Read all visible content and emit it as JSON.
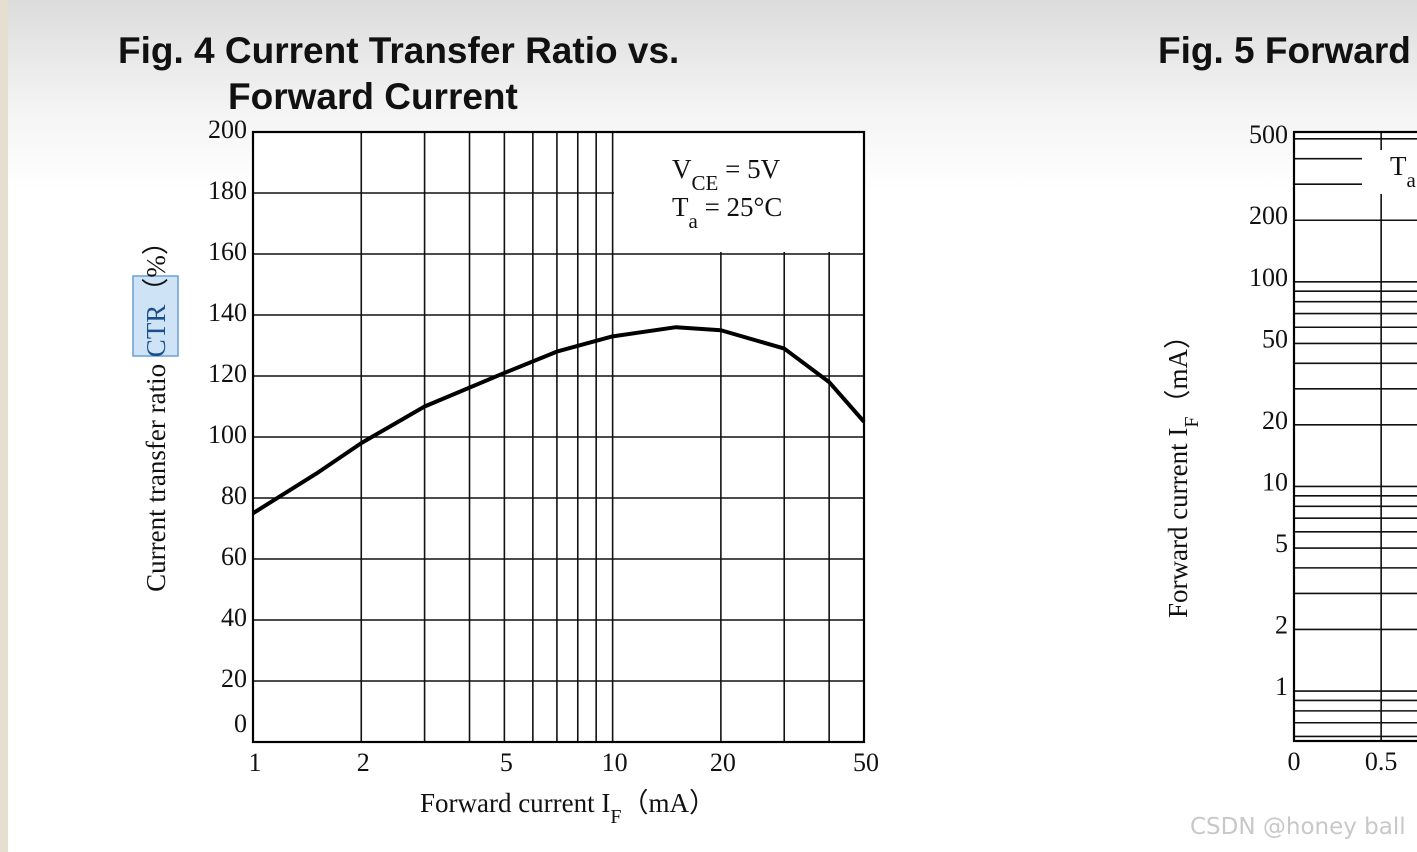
{
  "chart_data": [
    {
      "type": "line",
      "title": [
        "Fig. 4 Current Transfer Ratio vs.",
        "Forward Current"
      ],
      "x_label": {
        "text": "Forward current I",
        "sub": "F",
        "unit": "（mA）"
      },
      "y_label": {
        "text": "Current transfer ratio ",
        "highlight": "CTR",
        "unit": "（%）"
      },
      "annotations": [
        {
          "text": "V",
          "sub": "CE",
          "rest": " = 5V"
        },
        {
          "text": "T",
          "sub": "a",
          "rest": " = 25°C"
        }
      ],
      "x_scale": "log",
      "xlim": [
        1,
        50
      ],
      "xticks": [
        1,
        2,
        5,
        10,
        20,
        50
      ],
      "x_minor_grid": [
        3,
        4,
        6,
        7,
        8,
        9,
        30,
        40
      ],
      "ylim": [
        0,
        200
      ],
      "yticks": [
        0,
        20,
        40,
        60,
        80,
        100,
        120,
        140,
        160,
        180,
        200
      ],
      "grid": true,
      "series": [
        {
          "color": "#000000",
          "x": [
            1,
            1.5,
            2,
            3,
            5,
            7,
            10,
            15,
            20,
            30,
            40,
            50
          ],
          "values": [
            75,
            88,
            98,
            110,
            121,
            128,
            133,
            136,
            135,
            129,
            118,
            105
          ]
        }
      ]
    },
    {
      "type": "line",
      "title": [
        "Fig. 5 Forward"
      ],
      "y_label": {
        "text": "Forward current I",
        "sub": "F",
        "unit": "（mA）"
      },
      "annotations": [
        {
          "text": "T",
          "sub": "a"
        }
      ],
      "y_scale": "log",
      "ylim": [
        0.57,
        540
      ],
      "yticks": [
        1,
        2,
        5,
        10,
        20,
        50,
        100,
        200,
        500
      ],
      "y_minor_grid": [
        0.6,
        0.7,
        0.8,
        0.9,
        3,
        4,
        6,
        7,
        8,
        9,
        30,
        40,
        60,
        70,
        80,
        90,
        300,
        400
      ],
      "xlim": [
        0,
        1.4
      ],
      "xticks": [
        0,
        0.5
      ],
      "grid": true
    }
  ],
  "watermark": "CSDN @honey ball"
}
